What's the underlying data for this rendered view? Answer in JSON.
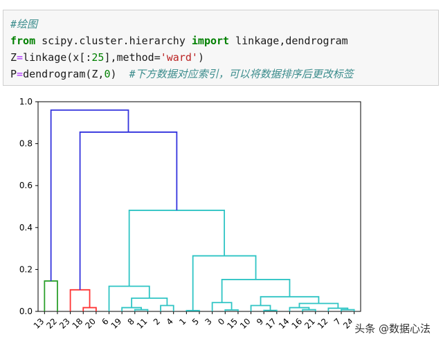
{
  "code": {
    "line1_comment": "#绘图",
    "line2": {
      "kw1": "from",
      "module": " scipy.cluster.hierarchy ",
      "kw2": "import",
      "names": " linkage,dendrogram"
    },
    "line3": {
      "a": "Z",
      "eq": "=",
      "b": "linkage(x[:",
      "n": "25",
      "c": "],method=",
      "s": "'ward'",
      "d": ")"
    },
    "line4": {
      "a": "P",
      "eq": "=",
      "b": "dendrogram(Z,",
      "n": "0",
      "c": ")",
      "comment": "  #下方数据对应索引，可以将数据排序后更改标签"
    }
  },
  "chart_data": {
    "type": "dendrogram",
    "ylim": [
      0,
      1.0
    ],
    "y_ticks": [
      "0.0",
      "0.2",
      "0.4",
      "0.6",
      "0.8",
      "1.0"
    ],
    "leaf_labels": [
      "13",
      "22",
      "23",
      "18",
      "20",
      "6",
      "19",
      "8",
      "11",
      "2",
      "4",
      "1",
      "5",
      "3",
      "0",
      "15",
      "10",
      "9",
      "17",
      "14",
      "16",
      "21",
      "12",
      "7",
      "24"
    ],
    "colors": {
      "green": "#2ca02c",
      "red": "#ff3333",
      "cyan": "#2ec4c4",
      "blue": "#3333dd"
    }
  },
  "watermark": "头条 @数据心法"
}
